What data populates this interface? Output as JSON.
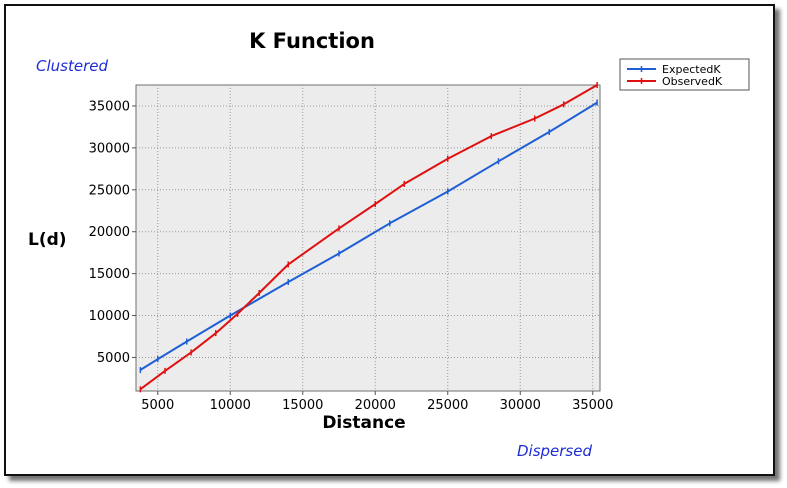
{
  "chart_data": {
    "type": "line",
    "title": "K Function",
    "xlabel": "Distance",
    "ylabel": "L(d)",
    "annotations": {
      "top_left": "Clustered",
      "bottom_right": "Dispersed"
    },
    "xlim": [
      3500,
      35500
    ],
    "ylim": [
      1000,
      37500
    ],
    "x_ticks": [
      5000,
      10000,
      15000,
      20000,
      25000,
      30000,
      35000
    ],
    "y_ticks": [
      5000,
      10000,
      15000,
      20000,
      25000,
      30000,
      35000
    ],
    "grid": true,
    "legend_position": "top-right",
    "series": [
      {
        "name": "ExpectedK",
        "color": "#1f5fd6",
        "x": [
          3800,
          5000,
          7000,
          10000,
          14000,
          17500,
          21000,
          25000,
          28500,
          32000,
          35300
        ],
        "y": [
          3500,
          4800,
          6900,
          10000,
          14000,
          17400,
          21000,
          24800,
          28400,
          31900,
          35400
        ]
      },
      {
        "name": "ObservedK",
        "color": "#e01010",
        "x": [
          3800,
          5500,
          7300,
          9000,
          10500,
          12000,
          14000,
          17500,
          20000,
          22000,
          25000,
          28000,
          31000,
          33000,
          35300
        ],
        "y": [
          1200,
          3400,
          5600,
          7900,
          10200,
          12700,
          16100,
          20400,
          23300,
          25700,
          28700,
          31400,
          33500,
          35200,
          37500
        ]
      }
    ]
  }
}
